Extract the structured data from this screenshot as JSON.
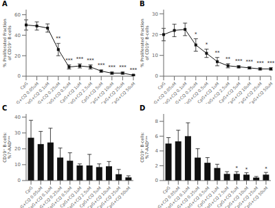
{
  "chart_data": [
    {
      "type": "line",
      "title": "A",
      "marker": "square",
      "color": "#111111",
      "categories": [
        "CpG",
        "CpG+CQ 0.05uM",
        "CpG+CQ 0.1uM",
        "CpG+CQ 0.25uM",
        "CpG+CQ 0.5uM",
        "CpG+CQ 1uM",
        "CpG+CQ 2.5uM",
        "CpG+CQ 5uM",
        "CpG+CQ 10uM",
        "CpG+CQ 25uM",
        "CpG+CQ 50uM"
      ],
      "values": [
        50,
        49,
        47,
        26,
        9,
        10,
        9,
        5,
        3,
        3,
        1
      ],
      "errors": [
        5,
        4,
        4,
        6,
        2,
        2,
        2,
        1,
        1,
        1,
        0.5
      ],
      "annotations": [
        {
          "category": "CpG+CQ 0.25uM",
          "text": "**"
        },
        {
          "category": "CpG+CQ 0.5uM",
          "text": "***"
        },
        {
          "category": "CpG+CQ 1uM",
          "text": "***"
        },
        {
          "category": "CpG+CQ 2.5uM",
          "text": "***"
        },
        {
          "category": "CpG+CQ 5uM",
          "text": "***"
        },
        {
          "category": "CpG+CQ 10uM",
          "text": "***"
        },
        {
          "category": "CpG+CQ 25uM",
          "text": "***"
        },
        {
          "category": "CpG+CQ 50uM",
          "text": "***"
        }
      ],
      "ylabel": "% Proliferated Fraction of CD19⁺ B-cells",
      "ylim": [
        0,
        65
      ],
      "yticks": [
        0,
        20,
        40,
        60
      ]
    },
    {
      "type": "line",
      "title": "B",
      "marker": "square",
      "color": "#111111",
      "categories": [
        "CpG",
        "CpG+CQ 0.05uM",
        "CpG+CQ 0.1uM",
        "CpG+CQ 0.25uM",
        "CpG+CQ 0.5uM",
        "CpG+CQ 1uM",
        "CpG+CQ 2.5uM",
        "CpG+CQ 5uM",
        "CpG+CQ 10uM",
        "CpG+CQ 25uM",
        "CpG+CQ 50uM"
      ],
      "values": [
        20,
        22,
        22.5,
        15,
        11,
        7,
        5,
        4.5,
        4,
        3.5,
        3.5
      ],
      "errors": [
        3,
        3,
        3,
        3,
        2,
        2,
        1,
        0.5,
        0.5,
        0.5,
        0.5
      ],
      "annotations": [
        {
          "category": "CpG+CQ 0.25uM",
          "text": "*"
        },
        {
          "category": "CpG+CQ 0.5uM",
          "text": "*"
        },
        {
          "category": "CpG+CQ 1uM",
          "text": "**"
        },
        {
          "category": "CpG+CQ 2.5uM",
          "text": "**"
        },
        {
          "category": "CpG+CQ 5uM",
          "text": "***"
        },
        {
          "category": "CpG+CQ 10uM",
          "text": "***"
        },
        {
          "category": "CpG+CQ 25uM",
          "text": "***"
        },
        {
          "category": "CpG+CQ 50uM",
          "text": "***"
        }
      ],
      "ylabel": "% Proliferated Fraction of CD19⁺ B-cells",
      "ylim": [
        0,
        32
      ],
      "yticks": [
        0,
        10,
        20,
        30
      ]
    },
    {
      "type": "bar",
      "title": "C",
      "color": "#111111",
      "categories": [
        "CpG",
        "CpG+CQ 0.05uM",
        "CpG+CQ 0.1uM",
        "CpG+CQ 0.25uM",
        "CpG+CQ 0.5uM",
        "CpG+CQ 1uM",
        "CpG+CQ 2.5uM",
        "CpG+CQ 5uM",
        "CpG+CQ 10uM",
        "CpG+CQ 25uM",
        "CpG+CQ 50uM"
      ],
      "values": [
        27,
        23,
        24,
        14.5,
        12.5,
        9.5,
        9.5,
        8.5,
        9,
        4,
        2
      ],
      "errors": [
        11,
        8,
        9,
        6,
        5,
        1,
        7,
        2,
        3,
        3,
        1
      ],
      "ylabel": "CD19⁺ B-cells: %7-AADᴷᵒʷ",
      "ylim": [
        0,
        42
      ],
      "yticks": [
        0,
        10,
        20,
        30,
        40
      ]
    },
    {
      "type": "bar",
      "title": "D",
      "color": "#111111",
      "categories": [
        "CpG",
        "CpG+CQ 0.05uM",
        "CpG+CQ 0.1uM",
        "CpG+CQ 0.25uM",
        "CpG+CQ 0.5uM",
        "CpG+CQ 1uM",
        "CpG+CQ 2.5uM",
        "CpG+CQ 5uM",
        "CpG+CQ 10uM",
        "CpG+CQ 25uM",
        "CpG+CQ 50uM"
      ],
      "values": [
        5.0,
        5.3,
        6.0,
        3.1,
        2.4,
        1.7,
        0.9,
        0.9,
        0.8,
        0.4,
        0.8
      ],
      "errors": [
        0.8,
        1.5,
        1.8,
        1.2,
        0.7,
        0.5,
        0.3,
        0.3,
        0.25,
        0.15,
        0.3
      ],
      "annotations": [
        {
          "category": "CpG+CQ 5uM",
          "text": "*"
        },
        {
          "category": "CpG+CQ 10uM",
          "text": "*"
        },
        {
          "category": "CpG+CQ 50uM",
          "text": "*"
        }
      ],
      "ylabel": "CD19⁺ B-cells: %7-AADᴷᵒʷ",
      "ylim": [
        0,
        9
      ],
      "yticks": [
        0,
        2,
        4,
        6,
        8
      ]
    }
  ]
}
